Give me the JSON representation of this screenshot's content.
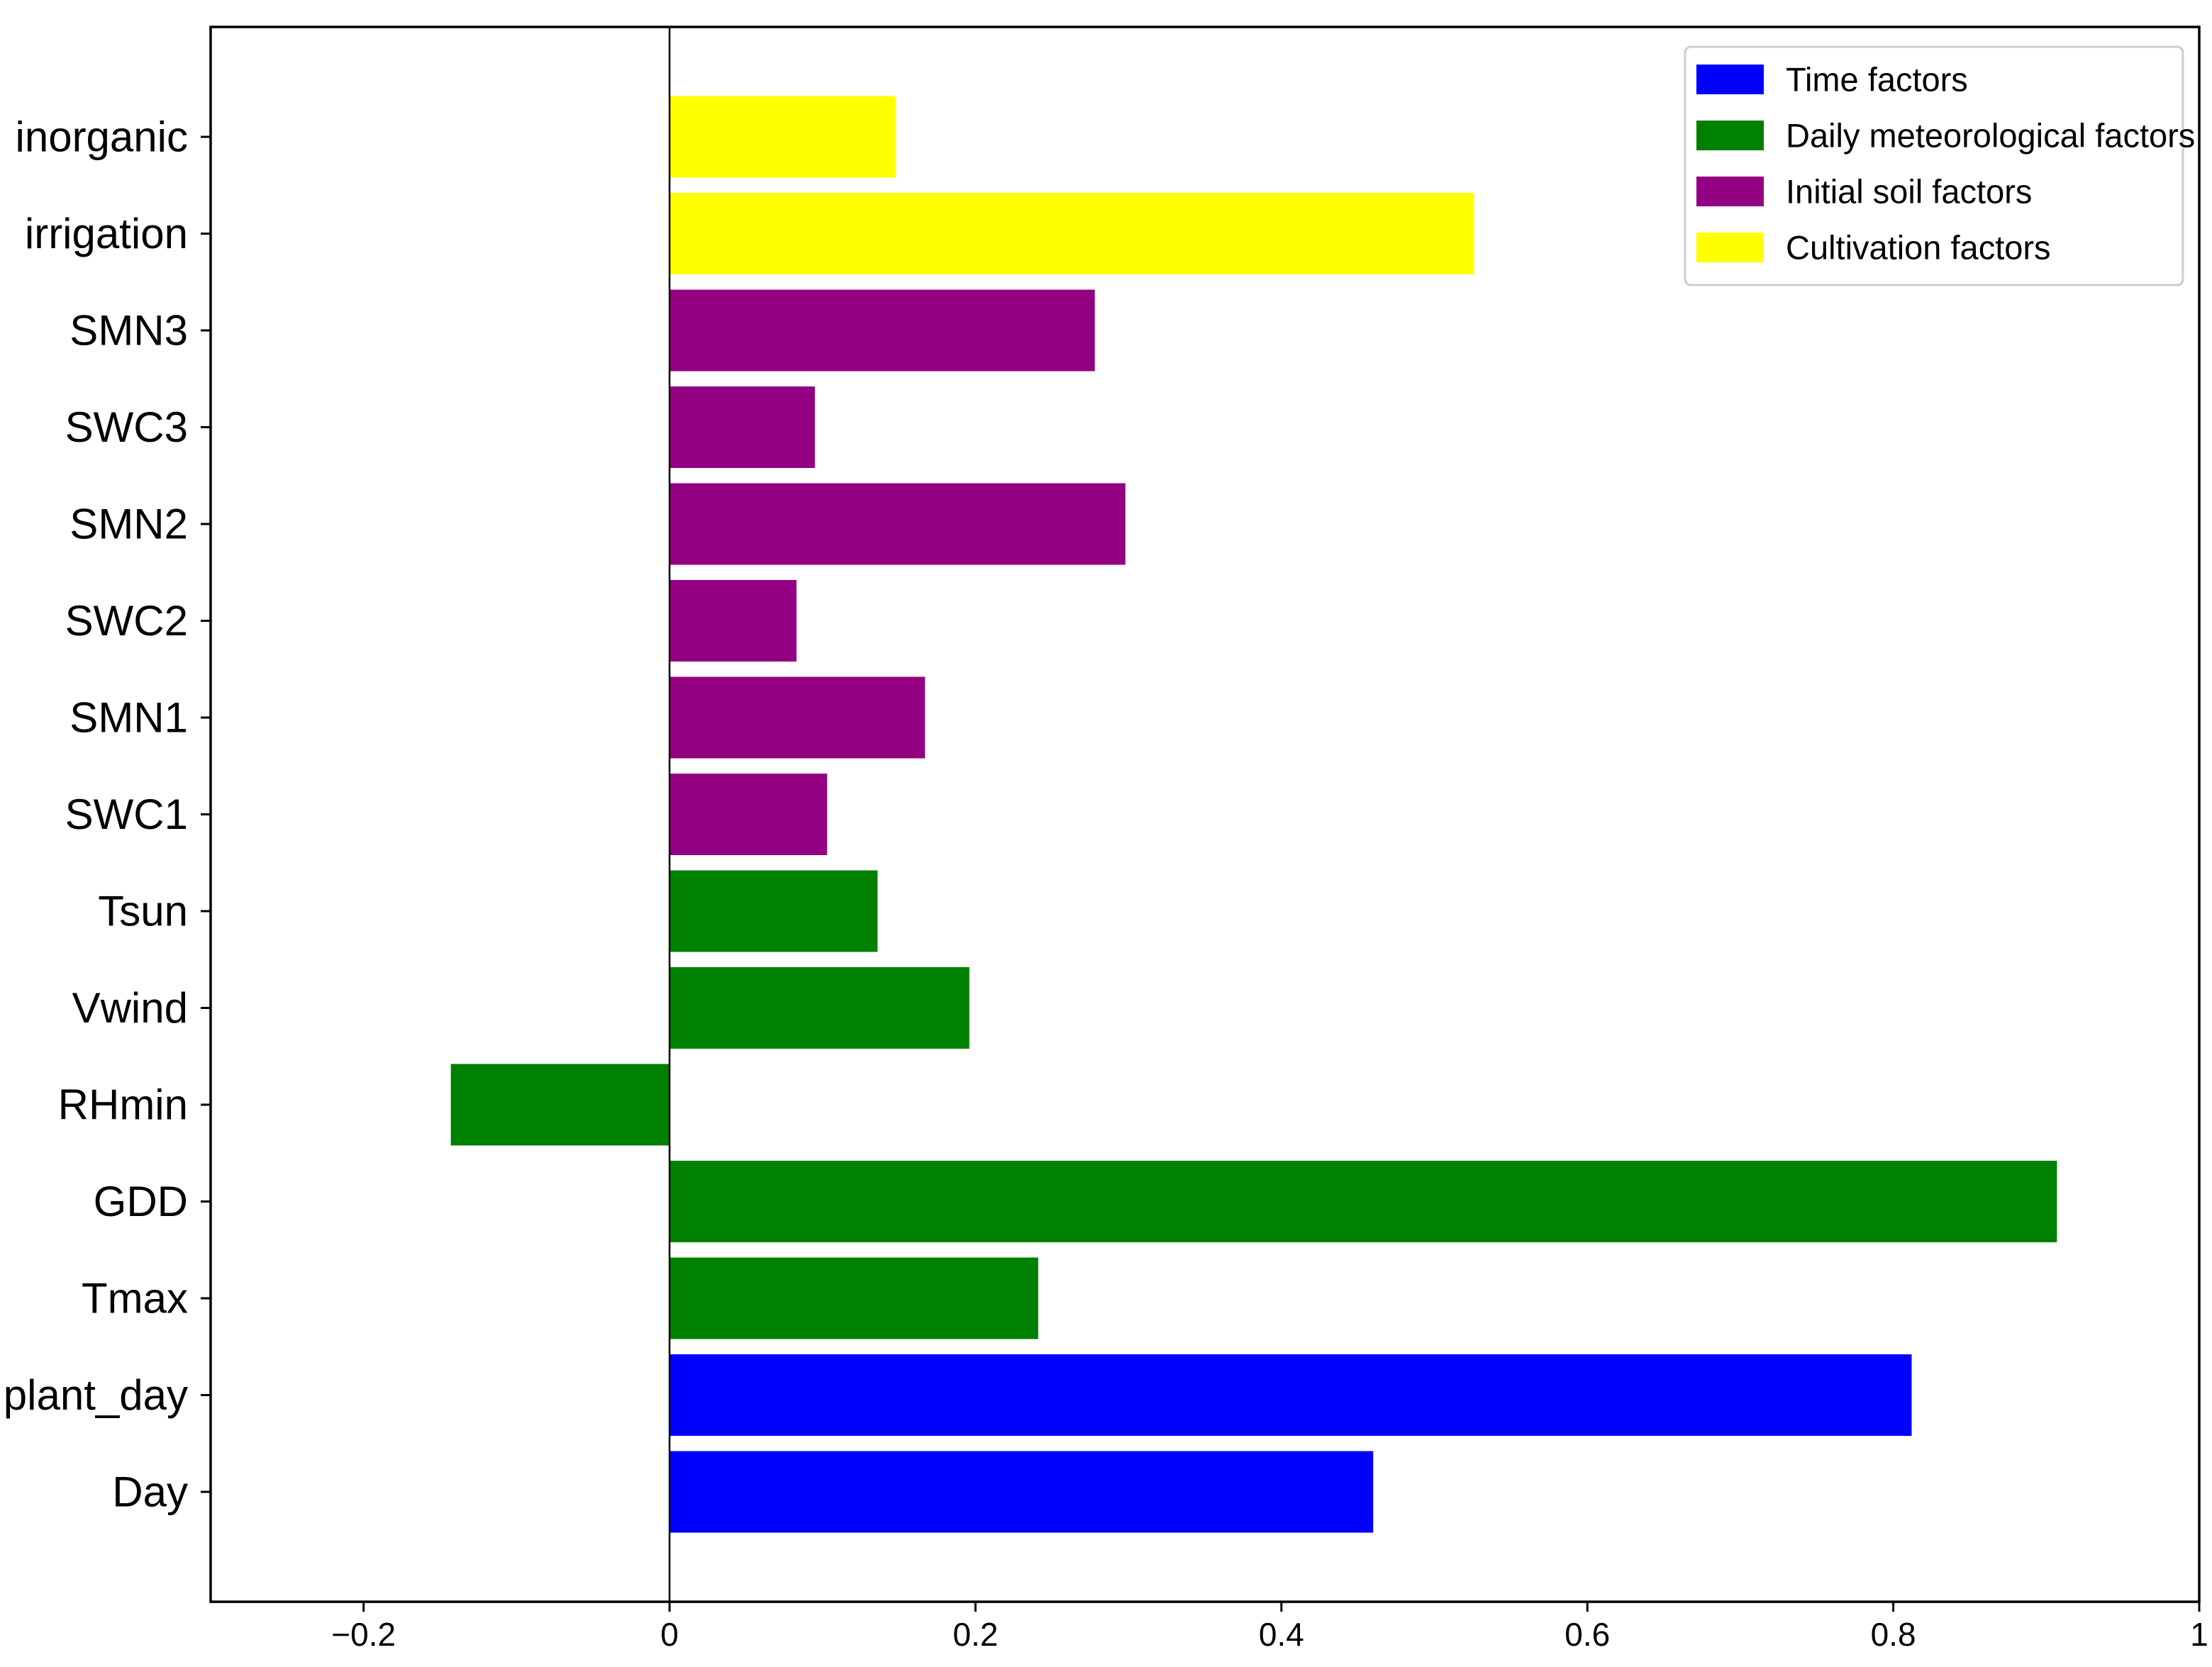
{
  "chart_data": {
    "type": "bar",
    "orientation": "horizontal",
    "title": "",
    "xlabel": "",
    "ylabel": "",
    "xlim": [
      -0.3,
      1.0
    ],
    "xticks": [
      -0.2,
      0,
      0.2,
      0.4,
      0.6,
      0.8,
      1
    ],
    "xtick_labels": [
      "−0.2",
      "0",
      "0.2",
      "0.4",
      "0.6",
      "0.8",
      "1"
    ],
    "grid": false,
    "zero_line": true,
    "legend_position": "top-right",
    "categories": [
      "Day",
      "plant_day",
      "Tmax",
      "GDD",
      "RHmin",
      "Vwind",
      "Tsun",
      "SWC1",
      "SMN1",
      "SWC2",
      "SMN2",
      "SWC3",
      "SMN3",
      "irrigation",
      "inorganic"
    ],
    "values": [
      0.46,
      0.812,
      0.241,
      0.907,
      -0.143,
      0.196,
      0.136,
      0.103,
      0.167,
      0.083,
      0.298,
      0.095,
      0.278,
      0.526,
      0.148
    ],
    "groups": [
      "time",
      "time",
      "meteo",
      "meteo",
      "meteo",
      "meteo",
      "meteo",
      "soil",
      "soil",
      "soil",
      "soil",
      "soil",
      "soil",
      "cult",
      "cult"
    ],
    "legend": [
      {
        "key": "time",
        "label": "Time factors",
        "color": "#0000ff"
      },
      {
        "key": "meteo",
        "label": "Daily meteorological factors",
        "color": "#008000"
      },
      {
        "key": "soil",
        "label": "Initial soil factors",
        "color": "#940082"
      },
      {
        "key": "cult",
        "label": "Cultivation factors",
        "color": "#ffff00"
      }
    ]
  }
}
